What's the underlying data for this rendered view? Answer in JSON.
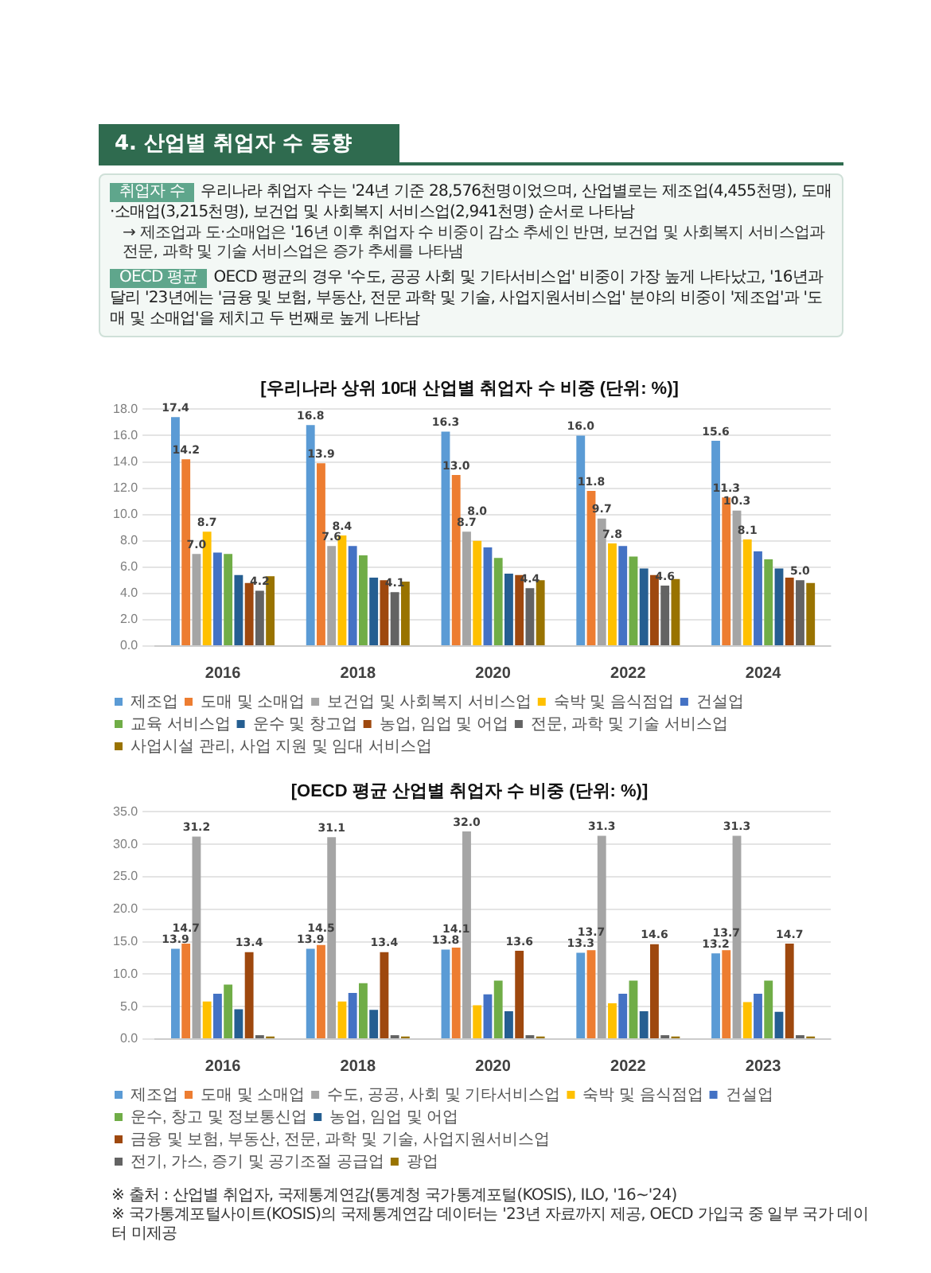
{
  "chart_data": [
    {
      "type": "bar",
      "title": "[우리나라 상위 10대 산업별 취업자 수 비중 (단위: %)]",
      "annotations": [
        "4. 산업별 취업자 수 동향",
        "취업자 수",
        "우리나라 취업자 수는 '24년 기준 28,576천명이었으며, 산업별로는 제조업(4,455천명), 도매·소매업(3,215천명), 보건업 및 사회복지 서비스업(2,941천명) 순서로 나타남",
        "→ 제조업과 도·소매업은 '16년 이후 취업자 수 비중이 감소 추세인 반면, 보건업 및 사회복지 서비스업과 전문, 과학 및 기술 서비스업은 증가 추세를 나타냄",
        "OECD 평균",
        "OECD 평균의 경우 '수도, 공공 사회 및 기타서비스업' 비중이 가장 높게 나타났고, '16년과 달리 '23년에는 '금융 및 보험, 부동산, 전문 과학 및 기술, 사업지원서비스업' 분야의 비중이 '제조업'과 '도매 및 소매업'을 제치고 두 번째로 높게 나타남"
      ],
      "categories": [
        "2016",
        "2018",
        "2020",
        "2022",
        "2024"
      ],
      "series": [
        {
          "name": "제조업",
          "color": "#5b9bd5",
          "values": [
            17.4,
            16.8,
            16.3,
            16.0,
            15.6
          ],
          "value_labels": [
            "17.4",
            "16.8",
            "16.3",
            "16.0",
            "15.6"
          ]
        },
        {
          "name": "도매 및 소매업",
          "color": "#ed7d31",
          "values": [
            14.2,
            13.9,
            13.0,
            11.8,
            11.3
          ],
          "value_labels": [
            "14.2",
            "13.9",
            "13.0",
            "11.8",
            "11.3"
          ]
        },
        {
          "name": "보건업 및 사회복지 서비스업",
          "color": "#a5a5a5",
          "values": [
            7.0,
            7.6,
            8.7,
            9.7,
            10.3
          ],
          "value_labels": [
            "7.0",
            "7.6",
            "8.7",
            "9.7",
            "10.3"
          ]
        },
        {
          "name": "숙박 및 음식점업",
          "color": "#ffc000",
          "values": [
            8.7,
            8.4,
            8.0,
            7.8,
            8.1
          ],
          "value_labels": [
            "8.7",
            "8.4",
            "8.0",
            "7.8",
            "8.1"
          ]
        },
        {
          "name": "건설업",
          "color": "#4472c4",
          "values": [
            7.1,
            7.6,
            7.5,
            7.6,
            7.2
          ]
        },
        {
          "name": "교육 서비스업",
          "color": "#70ad47",
          "values": [
            7.0,
            6.9,
            6.7,
            6.8,
            6.6
          ]
        },
        {
          "name": "운수 및 창고업",
          "color": "#255e91",
          "values": [
            5.4,
            5.2,
            5.5,
            5.9,
            5.9
          ]
        },
        {
          "name": "농업, 임업 및 어업",
          "color": "#9e480e",
          "values": [
            4.8,
            5.0,
            5.4,
            5.4,
            5.2
          ]
        },
        {
          "name": "전문, 과학 및 기술 서비스업",
          "color": "#636363",
          "values": [
            4.2,
            4.1,
            4.4,
            4.6,
            5.0
          ],
          "value_labels": [
            "4.2",
            "4.1",
            "4.4",
            "4.6",
            "5.0"
          ]
        },
        {
          "name": "사업시설 관리, 사업 지원 및 임대 서비스업",
          "color": "#997300",
          "values": [
            5.3,
            4.9,
            5.0,
            5.1,
            4.8
          ]
        }
      ],
      "ylim": [
        0,
        18
      ],
      "yticks": [
        {
          "value": 0,
          "label": "0.0"
        },
        {
          "value": 2,
          "label": "2.0"
        },
        {
          "value": 4,
          "label": "4.0"
        },
        {
          "value": 6,
          "label": "6.0"
        },
        {
          "value": 8,
          "label": "8.0"
        },
        {
          "value": 10,
          "label": "10.0"
        },
        {
          "value": 12,
          "label": "12.0"
        },
        {
          "value": 14,
          "label": "14.0"
        },
        {
          "value": 16,
          "label": "16.0"
        },
        {
          "value": 18,
          "label": "18.0"
        }
      ],
      "grid": "y",
      "legend": "bottom"
    },
    {
      "type": "bar",
      "title": "[OECD 평균 산업별 취업자 수 비중 (단위: %)]",
      "annotations": [
        "※ 출처 : 산업별 취업자, 국제통계연감(통계청 국가통계포털(KOSIS), ILO, '16~'24)",
        "※ 국가통계포털사이트(KOSIS)의 국제통계연감 데이터는 '23년 자료까지 제공, OECD 가입국 중 일부 국가 데이터 미제공"
      ],
      "categories": [
        "2016",
        "2018",
        "2020",
        "2022",
        "2023"
      ],
      "series": [
        {
          "name": "제조업",
          "color": "#5b9bd5",
          "values": [
            13.9,
            13.9,
            13.8,
            13.3,
            13.2
          ],
          "value_labels": [
            "13.9",
            "13.9",
            "13.8",
            "13.3",
            "13.2"
          ]
        },
        {
          "name": "도매 및 소매업",
          "color": "#ed7d31",
          "values": [
            14.7,
            14.5,
            14.1,
            13.7,
            13.7
          ],
          "value_labels": [
            "14.7",
            "14.5",
            "14.1",
            "13.7",
            "13.7"
          ]
        },
        {
          "name": "수도, 공공, 사회 및 기타서비스업",
          "color": "#a5a5a5",
          "values": [
            31.2,
            31.1,
            32.0,
            31.3,
            31.3
          ],
          "value_labels": [
            "31.2",
            "31.1",
            "32.0",
            "31.3",
            "31.3"
          ]
        },
        {
          "name": "숙박 및 음식점업",
          "color": "#ffc000",
          "values": [
            5.8,
            5.8,
            5.2,
            5.5,
            5.7
          ]
        },
        {
          "name": "건설업",
          "color": "#4472c4",
          "values": [
            7.0,
            7.1,
            6.9,
            7.0,
            7.0
          ]
        },
        {
          "name": "운수, 창고 및 정보통신업",
          "color": "#70ad47",
          "values": [
            8.4,
            8.6,
            9.0,
            9.0,
            9.0
          ]
        },
        {
          "name": "농업, 임업 및 어업",
          "color": "#255e91",
          "values": [
            4.6,
            4.5,
            4.3,
            4.3,
            4.2
          ]
        },
        {
          "name": "금융 및 보험, 부동산, 전문, 과학 및 기술, 사업지원서비스업",
          "color": "#9e480e",
          "values": [
            13.4,
            13.4,
            13.6,
            14.6,
            14.7
          ],
          "value_labels": [
            "13.4",
            "13.4",
            "13.6",
            "14.6",
            "14.7"
          ]
        },
        {
          "name": "전기, 가스, 증기 및 공기조절 공급업",
          "color": "#636363",
          "values": [
            0.6,
            0.6,
            0.6,
            0.6,
            0.6
          ]
        },
        {
          "name": "광업",
          "color": "#997300",
          "values": [
            0.4,
            0.4,
            0.4,
            0.4,
            0.4
          ]
        }
      ],
      "ylim": [
        0,
        35
      ],
      "yticks": [
        {
          "value": 0,
          "label": "0.0"
        },
        {
          "value": 5,
          "label": "5.0"
        },
        {
          "value": 10,
          "label": "10.0"
        },
        {
          "value": 15,
          "label": "15.0"
        },
        {
          "value": 20,
          "label": "20.0"
        },
        {
          "value": 25,
          "label": "25.0"
        },
        {
          "value": 30,
          "label": "30.0"
        },
        {
          "value": 35,
          "label": "35.0"
        }
      ],
      "grid": "y",
      "legend": "bottom"
    }
  ]
}
